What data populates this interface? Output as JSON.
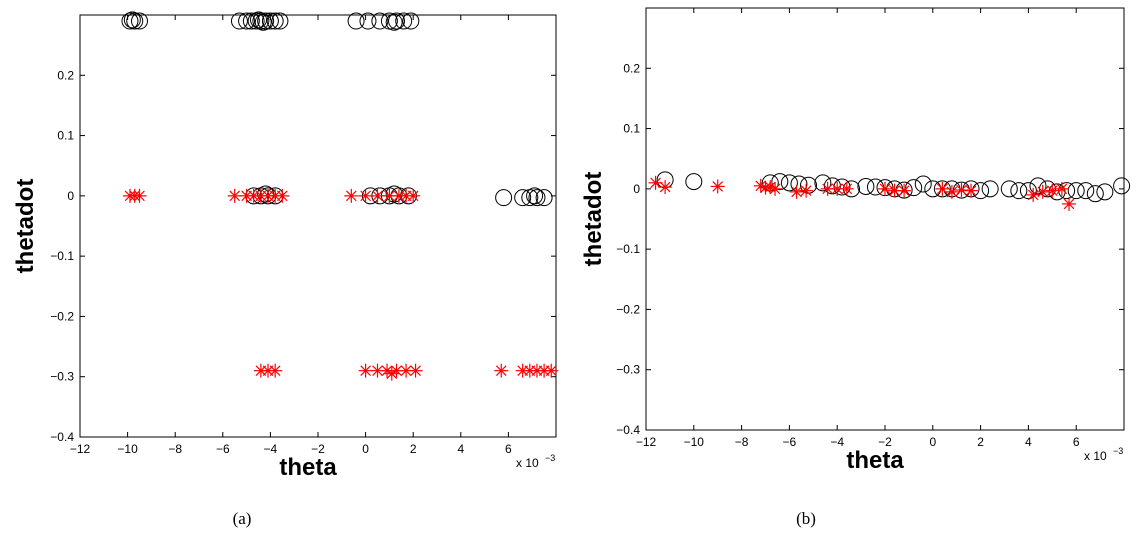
{
  "chart_data": [
    {
      "type": "scatter",
      "caption": "(a)",
      "xlabel": "theta",
      "ylabel": "thetadot",
      "x_multiplier_label": "x 10",
      "x_multiplier_exp": "−3",
      "xlim": [
        -12,
        8
      ],
      "ylim": [
        -0.4,
        0.3
      ],
      "xticks": [
        -12,
        -10,
        -8,
        -6,
        -4,
        -2,
        0,
        2,
        4,
        6
      ],
      "xtick_labels": [
        "−12",
        "−10",
        "−8",
        "−6",
        "−4",
        "−2",
        "0",
        "2",
        "4",
        "6"
      ],
      "yticks": [
        -0.4,
        -0.3,
        -0.2,
        -0.1,
        0,
        0.1,
        0.2
      ],
      "ytick_labels": [
        "−0.4",
        "−0.3",
        "−0.2",
        "−0.1",
        "0",
        "0.1",
        "0.2"
      ],
      "grid": false,
      "series": [
        {
          "marker": "circle",
          "color": "#000000",
          "points": [
            [
              -9.9,
              0.29
            ],
            [
              -9.7,
              0.29
            ],
            [
              -9.5,
              0.29
            ],
            [
              -9.8,
              0.292
            ],
            [
              -5.3,
              0.29
            ],
            [
              -5.0,
              0.29
            ],
            [
              -4.8,
              0.29
            ],
            [
              -4.6,
              0.29
            ],
            [
              -4.4,
              0.29
            ],
            [
              -4.2,
              0.29
            ],
            [
              -4.0,
              0.29
            ],
            [
              -3.8,
              0.29
            ],
            [
              -3.6,
              0.29
            ],
            [
              -4.3,
              0.288
            ],
            [
              -4.5,
              0.292
            ],
            [
              -0.4,
              0.29
            ],
            [
              0.1,
              0.29
            ],
            [
              0.6,
              0.29
            ],
            [
              1.0,
              0.29
            ],
            [
              1.3,
              0.29
            ],
            [
              1.6,
              0.29
            ],
            [
              1.9,
              0.29
            ],
            [
              1.2,
              0.288
            ],
            [
              -4.7,
              0.0
            ],
            [
              -4.4,
              0.0
            ],
            [
              -4.1,
              0.0
            ],
            [
              -3.8,
              0.0
            ],
            [
              -4.2,
              0.003
            ],
            [
              0.2,
              0.0
            ],
            [
              0.6,
              0.0
            ],
            [
              1.0,
              0.0
            ],
            [
              1.4,
              0.0
            ],
            [
              1.8,
              0.0
            ],
            [
              1.2,
              0.003
            ],
            [
              5.8,
              -0.003
            ],
            [
              6.6,
              -0.003
            ],
            [
              6.9,
              -0.003
            ],
            [
              7.2,
              -0.003
            ],
            [
              7.5,
              -0.003
            ],
            [
              7.1,
              0.0
            ]
          ]
        },
        {
          "marker": "asterisk",
          "color": "#ff0000",
          "points": [
            [
              -9.9,
              0.0
            ],
            [
              -9.7,
              0.0
            ],
            [
              -9.5,
              0.0
            ],
            [
              -5.5,
              0.0
            ],
            [
              -5.0,
              0.0
            ],
            [
              -4.7,
              0.0
            ],
            [
              -4.4,
              0.0
            ],
            [
              -4.1,
              0.0
            ],
            [
              -3.8,
              0.0
            ],
            [
              -3.5,
              0.0
            ],
            [
              -0.6,
              0.0
            ],
            [
              0.0,
              0.0
            ],
            [
              0.5,
              0.0
            ],
            [
              1.0,
              0.0
            ],
            [
              1.4,
              0.0
            ],
            [
              1.7,
              0.0
            ],
            [
              2.0,
              0.0
            ],
            [
              -4.4,
              -0.29
            ],
            [
              -4.1,
              -0.29
            ],
            [
              -3.8,
              -0.29
            ],
            [
              0.0,
              -0.29
            ],
            [
              0.5,
              -0.29
            ],
            [
              0.9,
              -0.29
            ],
            [
              1.3,
              -0.29
            ],
            [
              1.7,
              -0.29
            ],
            [
              2.1,
              -0.29
            ],
            [
              1.1,
              -0.295
            ],
            [
              5.7,
              -0.29
            ],
            [
              6.6,
              -0.29
            ],
            [
              6.9,
              -0.29
            ],
            [
              7.2,
              -0.29
            ],
            [
              7.5,
              -0.29
            ],
            [
              7.8,
              -0.29
            ]
          ]
        }
      ]
    },
    {
      "type": "scatter",
      "caption": "(b)",
      "xlabel": "theta",
      "ylabel": "thetadot",
      "x_multiplier_label": "x 10",
      "x_multiplier_exp": "−3",
      "xlim": [
        -12,
        8
      ],
      "ylim": [
        -0.4,
        0.3
      ],
      "xticks": [
        -12,
        -10,
        -8,
        -6,
        -4,
        -2,
        0,
        2,
        4,
        6
      ],
      "xtick_labels": [
        "−12",
        "−10",
        "−8",
        "−6",
        "−4",
        "−2",
        "0",
        "2",
        "4",
        "6"
      ],
      "yticks": [
        -0.4,
        -0.3,
        -0.2,
        -0.1,
        0,
        0.1,
        0.2
      ],
      "ytick_labels": [
        "−0.4",
        "−0.3",
        "−0.2",
        "−0.1",
        "0",
        "0.1",
        "0.2"
      ],
      "grid": false,
      "series": [
        {
          "marker": "circle",
          "color": "#000000",
          "points": [
            [
              -11.2,
              0.015
            ],
            [
              -10.0,
              0.012
            ],
            [
              -6.8,
              0.01
            ],
            [
              -6.4,
              0.012
            ],
            [
              -6.0,
              0.01
            ],
            [
              -5.6,
              0.008
            ],
            [
              -5.2,
              0.006
            ],
            [
              -4.6,
              0.01
            ],
            [
              -4.2,
              0.005
            ],
            [
              -3.8,
              0.003
            ],
            [
              -3.4,
              0.0
            ],
            [
              -2.8,
              0.004
            ],
            [
              -2.4,
              0.003
            ],
            [
              -2.0,
              0.002
            ],
            [
              -1.6,
              0.0
            ],
            [
              -1.2,
              -0.002
            ],
            [
              -0.8,
              0.002
            ],
            [
              -0.4,
              0.008
            ],
            [
              0.0,
              0.0
            ],
            [
              0.4,
              0.0
            ],
            [
              0.8,
              0.0
            ],
            [
              1.2,
              -0.002
            ],
            [
              1.6,
              0.0
            ],
            [
              2.0,
              -0.003
            ],
            [
              2.4,
              0.0
            ],
            [
              3.2,
              0.0
            ],
            [
              3.6,
              -0.003
            ],
            [
              4.0,
              -0.003
            ],
            [
              4.4,
              0.005
            ],
            [
              4.8,
              0.0
            ],
            [
              5.2,
              -0.005
            ],
            [
              5.6,
              -0.003
            ],
            [
              6.0,
              -0.003
            ],
            [
              6.4,
              -0.003
            ],
            [
              6.8,
              -0.008
            ],
            [
              7.2,
              -0.005
            ],
            [
              7.9,
              0.005
            ]
          ]
        },
        {
          "marker": "asterisk",
          "color": "#ff0000",
          "points": [
            [
              -11.6,
              0.01
            ],
            [
              -11.2,
              0.003
            ],
            [
              -9.0,
              0.004
            ],
            [
              -7.2,
              0.005
            ],
            [
              -7.0,
              0.002
            ],
            [
              -6.8,
              0.003
            ],
            [
              -6.6,
              0.0
            ],
            [
              -5.7,
              -0.005
            ],
            [
              -5.3,
              -0.003
            ],
            [
              -4.4,
              0.0
            ],
            [
              -4.0,
              0.0
            ],
            [
              -3.6,
              0.0
            ],
            [
              -2.0,
              0.0
            ],
            [
              -1.6,
              -0.003
            ],
            [
              -1.2,
              -0.003
            ],
            [
              0.4,
              0.0
            ],
            [
              0.8,
              -0.005
            ],
            [
              1.2,
              -0.002
            ],
            [
              1.6,
              -0.003
            ],
            [
              4.2,
              -0.01
            ],
            [
              4.6,
              -0.005
            ],
            [
              5.0,
              -0.003
            ],
            [
              5.4,
              0.0
            ],
            [
              5.7,
              -0.025
            ]
          ]
        }
      ]
    }
  ]
}
